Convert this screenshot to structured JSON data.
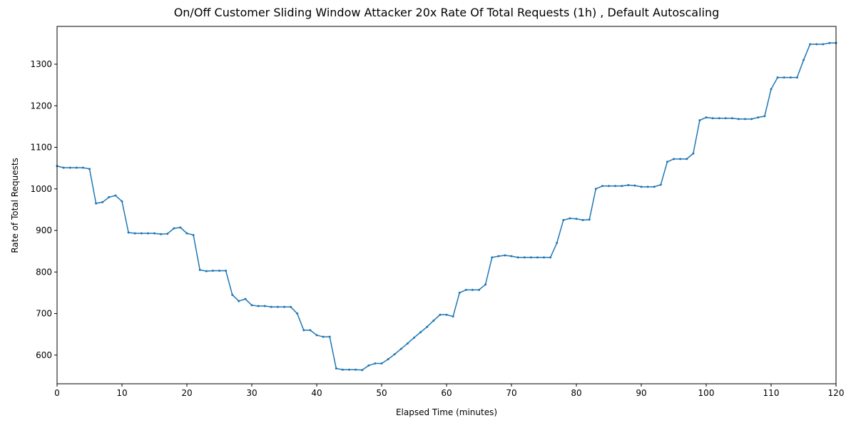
{
  "chart_data": {
    "type": "line",
    "title": "On/Off Customer Sliding Window Attacker 20x Rate Of Total Requests (1h) , Default Autoscaling",
    "x_label": "Elapsed Time (minutes)",
    "y_label": "Rate of Total Requests",
    "color": "#1f77b4",
    "xlim": [
      0,
      120
    ],
    "ylim": [
      531,
      1391
    ],
    "xticks": [
      0,
      10,
      20,
      30,
      40,
      50,
      60,
      70,
      80,
      90,
      100,
      110,
      120
    ],
    "yticks": [
      600,
      700,
      800,
      900,
      1000,
      1100,
      1200,
      1300
    ],
    "x": [
      0,
      1,
      2,
      3,
      4,
      5,
      6,
      7,
      8,
      9,
      10,
      11,
      12,
      13,
      14,
      15,
      16,
      17,
      18,
      19,
      20,
      21,
      22,
      23,
      24,
      25,
      26,
      27,
      28,
      29,
      30,
      31,
      32,
      33,
      34,
      35,
      36,
      37,
      38,
      39,
      40,
      41,
      42,
      43,
      44,
      45,
      46,
      47,
      48,
      49,
      50,
      51,
      52,
      53,
      54,
      55,
      56,
      57,
      58,
      59,
      60,
      61,
      62,
      63,
      64,
      65,
      66,
      67,
      68,
      69,
      70,
      71,
      72,
      73,
      74,
      75,
      76,
      77,
      78,
      79,
      80,
      81,
      82,
      83,
      84,
      85,
      86,
      87,
      88,
      89,
      90,
      91,
      92,
      93,
      94,
      95,
      96,
      97,
      98,
      99,
      100,
      101,
      102,
      103,
      104,
      105,
      106,
      107,
      108,
      109,
      110,
      111,
      112,
      113,
      114,
      115,
      116,
      117,
      118,
      119,
      120
    ],
    "values": [
      1055,
      1051,
      1051,
      1051,
      1051,
      1048,
      965,
      968,
      980,
      984,
      970,
      895,
      893,
      893,
      893,
      893,
      891,
      892,
      905,
      907,
      893,
      889,
      805,
      802,
      803,
      803,
      803,
      745,
      730,
      735,
      720,
      718,
      718,
      716,
      716,
      716,
      716,
      700,
      660,
      660,
      648,
      644,
      644,
      568,
      565,
      565,
      565,
      564,
      575,
      580,
      580,
      590,
      602,
      615,
      628,
      642,
      655,
      668,
      683,
      697,
      697,
      693,
      750,
      757,
      757,
      757,
      770,
      835,
      838,
      840,
      838,
      835,
      835,
      835,
      835,
      835,
      835,
      870,
      925,
      929,
      928,
      925,
      926,
      1000,
      1007,
      1007,
      1007,
      1007,
      1009,
      1008,
      1005,
      1005,
      1005,
      1010,
      1065,
      1072,
      1072,
      1072,
      1085,
      1165,
      1172,
      1170,
      1170,
      1170,
      1170,
      1168,
      1168,
      1168,
      1172,
      1175,
      1240,
      1268,
      1268,
      1268,
      1268,
      1310,
      1348,
      1348,
      1348,
      1351,
      1351
    ]
  }
}
